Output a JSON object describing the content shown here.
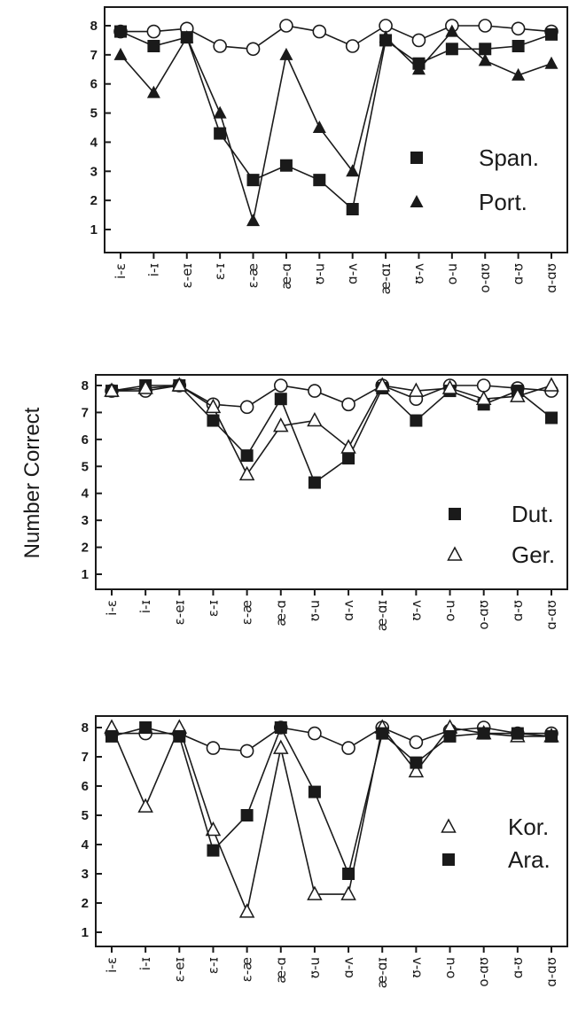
{
  "ylabel": "Number Correct",
  "chart_data": [
    {
      "type": "line",
      "categories": [
        "i-ɛ",
        "i-ɪ",
        "ɛ-eɪ",
        "ɛ-ɪ",
        "ɛ-æ",
        "æ-ɑ",
        "ʊ-u",
        "ɑ-ʌ",
        "æ-ɑɪ",
        "ʊ-ʌ",
        "o-u",
        "o-ɑʊ",
        "ɑ-ʊ",
        "ɑ-ɑʊ"
      ],
      "ylim": [
        1,
        8
      ],
      "yticks": [
        1,
        2,
        3,
        4,
        5,
        6,
        7,
        8
      ],
      "legend_position": "right",
      "series": [
        {
          "name": "",
          "marker": "circle-open",
          "values": [
            7.8,
            7.8,
            7.9,
            7.3,
            7.2,
            8.0,
            7.8,
            7.3,
            8.0,
            7.5,
            8.0,
            8.0,
            7.9,
            7.8
          ]
        },
        {
          "name": "Span.",
          "marker": "square-filled",
          "values": [
            7.8,
            7.3,
            7.6,
            4.3,
            2.7,
            3.2,
            2.7,
            1.7,
            7.5,
            6.7,
            7.2,
            7.2,
            7.3,
            7.7
          ]
        },
        {
          "name": "Port.",
          "marker": "triangle-filled",
          "values": [
            7.0,
            5.7,
            7.6,
            5.0,
            1.3,
            7.0,
            4.5,
            3.0,
            7.6,
            6.5,
            7.8,
            6.8,
            6.3,
            6.7
          ]
        }
      ]
    },
    {
      "type": "line",
      "categories": [
        "i-ɛ",
        "i-ɪ",
        "ɛ-eɪ",
        "ɛ-ɪ",
        "ɛ-æ",
        "æ-ɑ",
        "ʊ-u",
        "ɑ-ʌ",
        "æ-ɑɪ",
        "ʊ-ʌ",
        "o-u",
        "o-ɑʊ",
        "ɑ-ʊ",
        "ɑ-ɑʊ"
      ],
      "ylim": [
        1,
        8
      ],
      "yticks": [
        1,
        2,
        3,
        4,
        5,
        6,
        7,
        8
      ],
      "legend_position": "right",
      "series": [
        {
          "name": "",
          "marker": "circle-open",
          "values": [
            7.8,
            7.8,
            8.0,
            7.3,
            7.2,
            8.0,
            7.8,
            7.3,
            8.0,
            7.5,
            8.0,
            8.0,
            7.9,
            7.8
          ]
        },
        {
          "name": "Dut.",
          "marker": "square-filled",
          "values": [
            7.8,
            8.0,
            8.0,
            6.7,
            5.4,
            7.5,
            4.4,
            5.3,
            7.9,
            6.7,
            7.8,
            7.3,
            7.8,
            6.8
          ]
        },
        {
          "name": "Ger.",
          "marker": "triangle-open",
          "values": [
            7.8,
            7.9,
            8.0,
            7.2,
            4.7,
            6.5,
            6.7,
            5.7,
            8.0,
            7.8,
            7.9,
            7.5,
            7.6,
            8.0
          ]
        }
      ]
    },
    {
      "type": "line",
      "categories": [
        "i-ɛ",
        "i-ɪ",
        "ɛ-eɪ",
        "ɛ-ɪ",
        "ɛ-æ",
        "æ-ɑ",
        "ʊ-u",
        "ɑ-ʌ",
        "æ-ɑɪ",
        "ʊ-ʌ",
        "o-u",
        "o-ɑʊ",
        "ɑ-ʊ",
        "ɑ-ɑʊ"
      ],
      "ylim": [
        1,
        8
      ],
      "yticks": [
        1,
        2,
        3,
        4,
        5,
        6,
        7,
        8
      ],
      "legend_position": "right",
      "series": [
        {
          "name": "",
          "marker": "circle-open",
          "values": [
            7.8,
            7.8,
            7.8,
            7.3,
            7.2,
            8.0,
            7.8,
            7.3,
            8.0,
            7.5,
            7.9,
            8.0,
            7.8,
            7.8
          ]
        },
        {
          "name": "Kor.",
          "marker": "triangle-open",
          "values": [
            8.0,
            5.3,
            8.0,
            4.5,
            1.7,
            7.3,
            2.3,
            2.3,
            8.0,
            6.5,
            8.0,
            7.8,
            7.7,
            7.7
          ]
        },
        {
          "name": "Ara.",
          "marker": "square-filled",
          "values": [
            7.7,
            8.0,
            7.7,
            3.8,
            5.0,
            8.0,
            5.8,
            3.0,
            7.8,
            6.8,
            7.7,
            7.8,
            7.8,
            7.7
          ]
        }
      ]
    }
  ]
}
